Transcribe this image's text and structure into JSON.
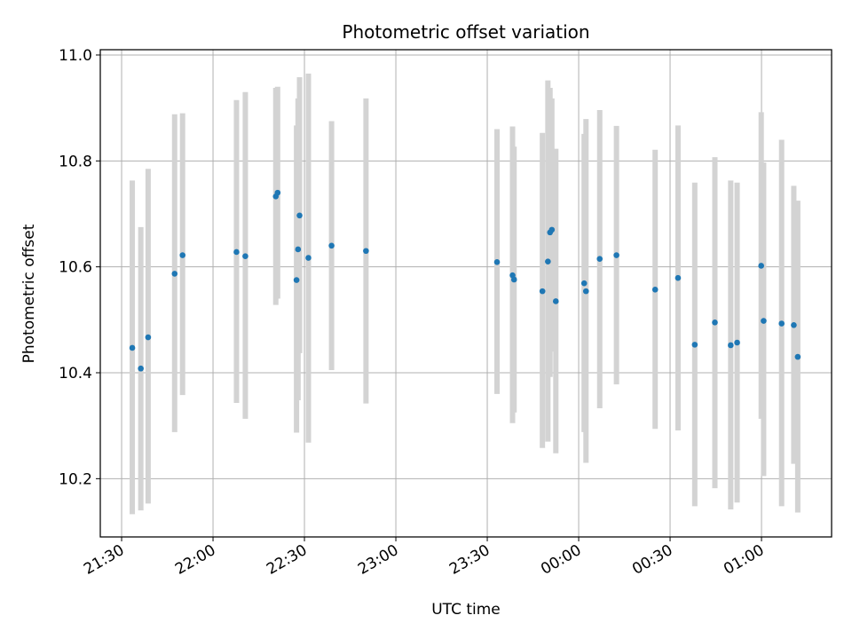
{
  "chart_data": {
    "type": "scatter",
    "title": "Photometric offset variation",
    "xlabel": "UTC time",
    "ylabel": "Photometric offset",
    "x_unit": "minutes relative to 21:30 UTC",
    "xlim": [
      -7,
      233
    ],
    "ylim": [
      10.09,
      11.01
    ],
    "grid": true,
    "x_ticks": [
      {
        "x": 0,
        "label": "21:30"
      },
      {
        "x": 30,
        "label": "22:00"
      },
      {
        "x": 60,
        "label": "22:30"
      },
      {
        "x": 90,
        "label": "23:00"
      },
      {
        "x": 120,
        "label": "23:30"
      },
      {
        "x": 150,
        "label": "00:00"
      },
      {
        "x": 180,
        "label": "00:30"
      },
      {
        "x": 210,
        "label": "01:00"
      }
    ],
    "y_ticks": [
      {
        "y": 10.2,
        "label": "10.2"
      },
      {
        "y": 10.4,
        "label": "10.4"
      },
      {
        "y": 10.6,
        "label": "10.6"
      },
      {
        "y": 10.8,
        "label": "10.8"
      },
      {
        "y": 11.0,
        "label": "11.0"
      }
    ],
    "point_color": "#1f77b4",
    "errorbar_color": "#d3d3d3",
    "points": [
      {
        "x": 3.5,
        "y": 10.447,
        "lo": 10.133,
        "hi": 10.763
      },
      {
        "x": 6.3,
        "y": 10.408,
        "lo": 10.14,
        "hi": 10.675
      },
      {
        "x": 8.7,
        "y": 10.467,
        "lo": 10.153,
        "hi": 10.785
      },
      {
        "x": 17.4,
        "y": 10.587,
        "lo": 10.288,
        "hi": 10.888
      },
      {
        "x": 20.0,
        "y": 10.622,
        "lo": 10.358,
        "hi": 10.89
      },
      {
        "x": 37.7,
        "y": 10.628,
        "lo": 10.343,
        "hi": 10.915
      },
      {
        "x": 40.6,
        "y": 10.62,
        "lo": 10.313,
        "hi": 10.93
      },
      {
        "x": 50.6,
        "y": 10.733,
        "lo": 10.528,
        "hi": 10.938
      },
      {
        "x": 51.2,
        "y": 10.74,
        "lo": 10.54,
        "hi": 10.94
      },
      {
        "x": 57.4,
        "y": 10.575,
        "lo": 10.287,
        "hi": 10.867
      },
      {
        "x": 57.9,
        "y": 10.633,
        "lo": 10.348,
        "hi": 10.918
      },
      {
        "x": 58.4,
        "y": 10.697,
        "lo": 10.437,
        "hi": 10.958
      },
      {
        "x": 61.3,
        "y": 10.617,
        "lo": 10.268,
        "hi": 10.965
      },
      {
        "x": 68.9,
        "y": 10.64,
        "lo": 10.405,
        "hi": 10.875
      },
      {
        "x": 80.2,
        "y": 10.63,
        "lo": 10.342,
        "hi": 10.918
      },
      {
        "x": 123.2,
        "y": 10.609,
        "lo": 10.36,
        "hi": 10.86
      },
      {
        "x": 128.3,
        "y": 10.584,
        "lo": 10.305,
        "hi": 10.865
      },
      {
        "x": 128.8,
        "y": 10.576,
        "lo": 10.325,
        "hi": 10.827
      },
      {
        "x": 138.1,
        "y": 10.554,
        "lo": 10.258,
        "hi": 10.853
      },
      {
        "x": 139.9,
        "y": 10.61,
        "lo": 10.27,
        "hi": 10.952
      },
      {
        "x": 140.6,
        "y": 10.665,
        "lo": 10.392,
        "hi": 10.938
      },
      {
        "x": 141.2,
        "y": 10.67,
        "lo": 10.44,
        "hi": 10.918
      },
      {
        "x": 142.5,
        "y": 10.535,
        "lo": 10.248,
        "hi": 10.823
      },
      {
        "x": 151.8,
        "y": 10.569,
        "lo": 10.288,
        "hi": 10.851
      },
      {
        "x": 152.4,
        "y": 10.554,
        "lo": 10.23,
        "hi": 10.879
      },
      {
        "x": 156.9,
        "y": 10.615,
        "lo": 10.333,
        "hi": 10.896
      },
      {
        "x": 162.4,
        "y": 10.622,
        "lo": 10.378,
        "hi": 10.866
      },
      {
        "x": 175.1,
        "y": 10.557,
        "lo": 10.294,
        "hi": 10.821
      },
      {
        "x": 182.6,
        "y": 10.579,
        "lo": 10.291,
        "hi": 10.867
      },
      {
        "x": 188.1,
        "y": 10.453,
        "lo": 10.148,
        "hi": 10.759
      },
      {
        "x": 194.7,
        "y": 10.495,
        "lo": 10.182,
        "hi": 10.807
      },
      {
        "x": 199.9,
        "y": 10.452,
        "lo": 10.142,
        "hi": 10.763
      },
      {
        "x": 202.0,
        "y": 10.457,
        "lo": 10.155,
        "hi": 10.759
      },
      {
        "x": 209.9,
        "y": 10.602,
        "lo": 10.313,
        "hi": 10.892
      },
      {
        "x": 210.7,
        "y": 10.498,
        "lo": 10.205,
        "hi": 10.797
      },
      {
        "x": 216.6,
        "y": 10.493,
        "lo": 10.148,
        "hi": 10.84
      },
      {
        "x": 220.6,
        "y": 10.49,
        "lo": 10.228,
        "hi": 10.753
      },
      {
        "x": 221.9,
        "y": 10.43,
        "lo": 10.136,
        "hi": 10.725
      }
    ]
  }
}
